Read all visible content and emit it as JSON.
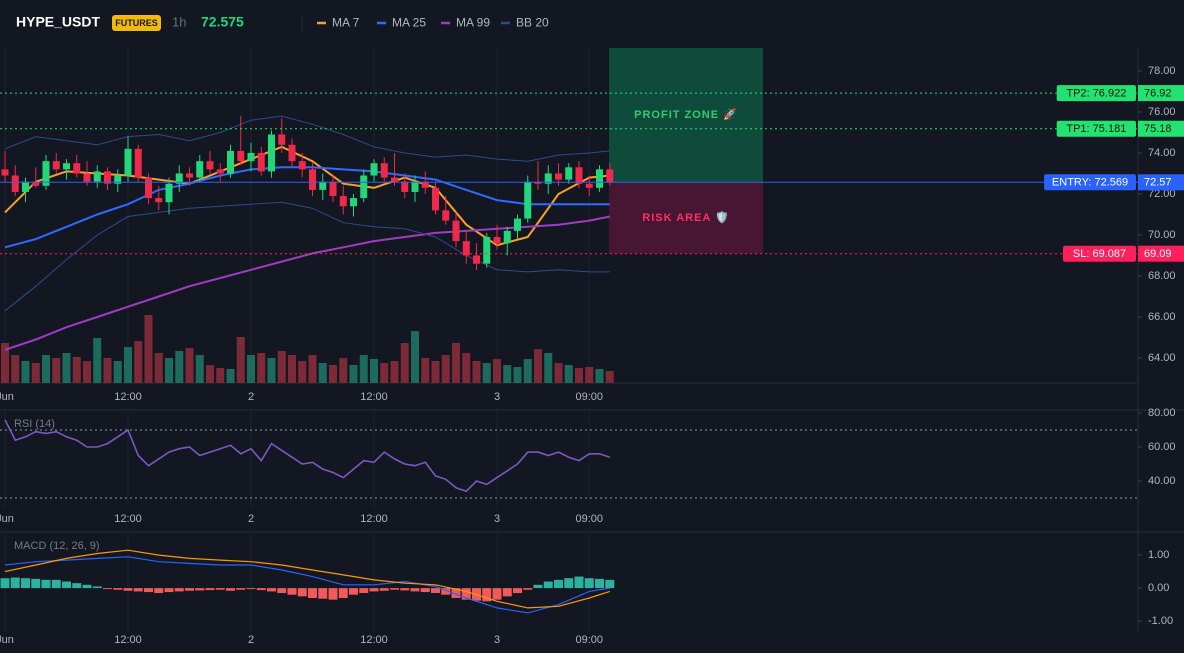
{
  "header": {
    "symbol": "HYPE_USDT",
    "badge": "FUTURES",
    "interval": "1h",
    "price": 72.575
  },
  "chart_data": [
    {
      "type": "candlestick",
      "ylim": [
        62.78,
        79.12
      ],
      "yticks": [
        {
          "value": 64,
          "label": "64.00"
        },
        {
          "value": 66,
          "label": "66.00"
        },
        {
          "value": 68,
          "label": "68.00"
        },
        {
          "value": 70,
          "label": "70.00"
        },
        {
          "value": 72,
          "label": "72.00"
        },
        {
          "value": 74,
          "label": "74.00"
        },
        {
          "value": 76,
          "label": "76.00"
        },
        {
          "value": 78,
          "label": "78.00"
        }
      ],
      "xticks": [
        {
          "value": 0,
          "label": "Jun"
        },
        {
          "value": 12,
          "label": "12:00"
        },
        {
          "value": 24,
          "label": "2"
        },
        {
          "value": 36,
          "label": "12:00"
        },
        {
          "value": 48,
          "label": "3"
        },
        {
          "value": 57,
          "label": "09:00"
        }
      ],
      "up_color": "#22d67a",
      "down_color": "#f0284a",
      "volume_up_color": "#1d6b5d",
      "volume_down_color": "#7d2a38",
      "open": [
        73.2,
        72.9,
        72.1,
        72.6,
        72.4,
        73.6,
        73.2,
        73.5,
        73.0,
        72.6,
        73.1,
        72.5,
        72.9,
        74.2,
        72.8,
        71.8,
        71.6,
        72.5,
        73.0,
        72.8,
        73.6,
        73.2,
        73.0,
        74.1,
        73.6,
        74.0,
        73.1,
        74.9,
        74.4,
        73.6,
        73.2,
        72.2,
        72.6,
        71.9,
        71.4,
        71.8,
        72.9,
        73.5,
        72.8,
        72.6,
        72.1,
        72.6,
        72.3,
        71.2,
        70.7,
        69.7,
        69.0,
        68.6,
        69.9,
        69.6,
        70.2,
        70.8,
        72.6,
        72.5,
        73.0,
        72.7,
        73.3,
        72.5,
        72.3,
        73.2
      ],
      "high": [
        74.1,
        73.4,
        72.8,
        73.3,
        73.9,
        74.0,
        73.7,
        73.9,
        73.6,
        73.4,
        73.3,
        73.2,
        74.8,
        74.4,
        73.0,
        72.4,
        72.8,
        73.4,
        73.3,
        73.9,
        74.1,
        73.5,
        74.4,
        75.8,
        74.5,
        74.3,
        75.1,
        75.7,
        74.7,
        74.0,
        73.5,
        73.0,
        72.9,
        72.4,
        72.0,
        73.2,
        73.7,
        73.8,
        74.0,
        73.0,
        72.9,
        73.1,
        72.6,
        71.9,
        71.1,
        70.2,
        69.6,
        70.1,
        70.5,
        70.4,
        71.0,
        72.9,
        73.6,
        73.4,
        73.5,
        73.5,
        73.6,
        72.9,
        73.4,
        73.5
      ],
      "low": [
        72.6,
        71.9,
        71.6,
        72.3,
        72.2,
        73.0,
        72.7,
        72.8,
        72.4,
        72.3,
        72.2,
        72.1,
        72.6,
        72.6,
        71.5,
        71.2,
        71.0,
        72.1,
        72.4,
        72.6,
        73.0,
        72.6,
        72.8,
        73.4,
        73.1,
        72.9,
        72.8,
        74.0,
        73.3,
        72.8,
        71.9,
        71.7,
        71.6,
        71.0,
        70.9,
        71.6,
        72.6,
        72.6,
        72.4,
        71.8,
        71.6,
        72.0,
        71.0,
        70.5,
        69.4,
        68.6,
        68.3,
        68.4,
        69.3,
        69.0,
        69.8,
        70.6,
        72.2,
        72.0,
        72.4,
        72.5,
        72.3,
        71.9,
        72.1,
        72.4
      ],
      "close": [
        72.9,
        72.1,
        72.6,
        72.4,
        73.6,
        73.2,
        73.5,
        73.0,
        72.6,
        73.1,
        72.5,
        72.9,
        74.2,
        72.8,
        71.8,
        71.6,
        72.5,
        73.0,
        72.8,
        73.6,
        73.2,
        73.0,
        74.1,
        73.6,
        74.0,
        73.1,
        74.9,
        74.4,
        73.6,
        73.2,
        72.2,
        72.6,
        71.9,
        71.4,
        71.8,
        72.9,
        73.5,
        72.8,
        72.6,
        72.1,
        72.6,
        72.3,
        71.2,
        70.7,
        69.7,
        69.0,
        68.6,
        69.9,
        69.6,
        70.2,
        70.8,
        72.6,
        72.5,
        73.0,
        72.7,
        73.3,
        72.5,
        72.3,
        73.2,
        72.575
      ],
      "volume": [
        40,
        28,
        22,
        20,
        28,
        25,
        30,
        26,
        22,
        45,
        25,
        22,
        36,
        42,
        68,
        30,
        25,
        32,
        35,
        28,
        18,
        15,
        14,
        46,
        28,
        30,
        25,
        32,
        28,
        22,
        28,
        20,
        18,
        25,
        18,
        28,
        24,
        20,
        22,
        40,
        52,
        25,
        22,
        28,
        40,
        30,
        22,
        20,
        24,
        18,
        16,
        24,
        34,
        30,
        20,
        18,
        15,
        16,
        14,
        12
      ],
      "series": [
        {
          "name": "MA 7",
          "color": "#f7a128",
          "x": [
            0,
            3,
            6,
            9,
            12,
            15,
            18,
            21,
            24,
            27,
            30,
            33,
            36,
            39,
            42,
            45,
            48,
            51,
            54,
            57,
            59
          ],
          "values": [
            71.1,
            72.6,
            73.1,
            73.0,
            72.9,
            72.7,
            72.5,
            73.1,
            73.7,
            74.3,
            73.6,
            72.5,
            72.3,
            72.8,
            72.3,
            70.5,
            69.5,
            69.9,
            72.0,
            72.8,
            72.9
          ]
        },
        {
          "name": "MA 25",
          "color": "#2e6bff",
          "x": [
            0,
            3,
            6,
            9,
            12,
            15,
            18,
            21,
            24,
            27,
            30,
            33,
            36,
            39,
            42,
            45,
            48,
            51,
            54,
            57,
            59
          ],
          "values": [
            69.4,
            69.8,
            70.4,
            71.0,
            71.5,
            72.2,
            72.5,
            72.9,
            73.2,
            73.3,
            73.3,
            73.2,
            73.1,
            72.9,
            72.7,
            72.2,
            71.7,
            71.5,
            71.5,
            71.5,
            71.5
          ]
        },
        {
          "name": "MA 99",
          "color": "#a23bc4",
          "x": [
            0,
            3,
            6,
            9,
            12,
            15,
            18,
            21,
            24,
            27,
            30,
            33,
            36,
            39,
            42,
            45,
            48,
            51,
            54,
            57,
            59
          ],
          "values": [
            64.4,
            64.9,
            65.5,
            66.0,
            66.5,
            67.0,
            67.5,
            67.9,
            68.3,
            68.7,
            69.1,
            69.4,
            69.7,
            69.9,
            70.1,
            70.2,
            70.3,
            70.4,
            70.5,
            70.7,
            70.9
          ]
        },
        {
          "name": "BB 20",
          "color": "#2f4a8f",
          "x": [
            0,
            3,
            6,
            9,
            12,
            15,
            18,
            21,
            24,
            27,
            30,
            33,
            36,
            39,
            42,
            45,
            48,
            51,
            54,
            57,
            59
          ],
          "upper": [
            74.2,
            74.8,
            74.6,
            74.4,
            74.8,
            74.9,
            74.6,
            75.0,
            75.6,
            75.8,
            75.4,
            74.9,
            74.3,
            74.0,
            73.8,
            73.9,
            73.7,
            73.6,
            73.9,
            74.0,
            74.1
          ],
          "lower": [
            66.3,
            67.5,
            68.8,
            70.0,
            70.9,
            71.1,
            71.3,
            71.4,
            71.5,
            71.6,
            71.3,
            70.6,
            70.4,
            70.3,
            69.9,
            69.0,
            68.3,
            68.2,
            68.3,
            68.2,
            68.2
          ]
        }
      ],
      "levels": [
        {
          "label": "TP2: 76.922",
          "value": 76.922,
          "price_label": "76.92",
          "color": "#22e36f",
          "style": "dotted"
        },
        {
          "label": "TP1: 75.181",
          "value": 75.181,
          "price_label": "75.18",
          "color": "#22e36f",
          "style": "dotted"
        },
        {
          "label": "ENTRY: 72.569",
          "value": 72.569,
          "price_label": "72.57",
          "color": "#2962ff",
          "style": "solid"
        },
        {
          "label": "SL: 69.087",
          "value": 69.087,
          "price_label": "69.09",
          "color": "#ff1f5a",
          "style": "dotted"
        }
      ],
      "zones": [
        {
          "label": "PROFIT ZONE 🚀",
          "from": 72.569,
          "to": 79.12,
          "color": "#0f5e44",
          "text_color": "#2ecc71"
        },
        {
          "label": "RISK AREA 🛡️",
          "from": 69.087,
          "to": 72.569,
          "color": "#5a1738",
          "text_color": "#ff2e63"
        }
      ]
    },
    {
      "type": "line",
      "title": "RSI (14)",
      "color": "#7e57c2",
      "ylim": [
        24.1,
        81.8
      ],
      "yticks": [
        {
          "value": 40,
          "label": "40.00"
        },
        {
          "value": 60,
          "label": "60.00"
        },
        {
          "value": 80,
          "label": "80.00"
        }
      ],
      "bands": [
        30,
        70
      ],
      "xticks": [
        {
          "value": 0,
          "label": "Jun"
        },
        {
          "value": 12,
          "label": "12:00"
        },
        {
          "value": 24,
          "label": "2"
        },
        {
          "value": 36,
          "label": "12:00"
        },
        {
          "value": 48,
          "label": "3"
        },
        {
          "value": 57,
          "label": "09:00"
        }
      ],
      "values": [
        76,
        64,
        66,
        69,
        68,
        69,
        66,
        64,
        60,
        60,
        62,
        66,
        70,
        55,
        49,
        53,
        57,
        59,
        60,
        55,
        57,
        59,
        61,
        56,
        59,
        52,
        62,
        58,
        54,
        50,
        51,
        47,
        45,
        42,
        47,
        52,
        51,
        57,
        53,
        50,
        49,
        51,
        43,
        41,
        36,
        34,
        40,
        38,
        42,
        46,
        50,
        57,
        57,
        55,
        57,
        54,
        52,
        56,
        56,
        54
      ]
    },
    {
      "type": "bar",
      "title": "MACD (12, 26, 9)",
      "ylim": [
        -1.33,
        1.7
      ],
      "yticks": [
        {
          "value": -1,
          "label": "-1.00"
        },
        {
          "value": 0,
          "label": "0.00"
        },
        {
          "value": 1,
          "label": "1.00"
        }
      ],
      "xticks": [
        {
          "value": 0,
          "label": "Jun"
        },
        {
          "value": 12,
          "label": "12:00"
        },
        {
          "value": 24,
          "label": "2"
        },
        {
          "value": 36,
          "label": "12:00"
        },
        {
          "value": 48,
          "label": "3"
        },
        {
          "value": 57,
          "label": "09:00"
        }
      ],
      "up_color": "#2bb3a0",
      "down_color": "#f25a5a",
      "values": [
        0.3,
        0.32,
        0.3,
        0.28,
        0.25,
        0.25,
        0.2,
        0.15,
        0.1,
        0.05,
        -0.03,
        -0.05,
        -0.08,
        -0.1,
        -0.12,
        -0.15,
        -0.12,
        -0.1,
        -0.08,
        -0.07,
        -0.06,
        -0.05,
        -0.08,
        -0.05,
        -0.03,
        -0.06,
        -0.1,
        -0.15,
        -0.2,
        -0.25,
        -0.3,
        -0.32,
        -0.35,
        -0.3,
        -0.2,
        -0.15,
        -0.1,
        -0.08,
        -0.05,
        -0.07,
        -0.1,
        -0.12,
        -0.15,
        -0.2,
        -0.3,
        -0.35,
        -0.38,
        -0.4,
        -0.35,
        -0.25,
        -0.15,
        -0.05,
        0.1,
        0.2,
        0.25,
        0.3,
        0.35,
        0.3,
        0.28,
        0.25
      ],
      "series": [
        {
          "color": "#2962ff",
          "x": [
            0,
            3,
            6,
            9,
            12,
            15,
            18,
            21,
            24,
            27,
            30,
            33,
            36,
            39,
            42,
            45,
            48,
            51,
            54,
            57,
            59
          ],
          "values": [
            0.7,
            0.8,
            0.85,
            0.9,
            0.95,
            0.8,
            0.75,
            0.7,
            0.7,
            0.55,
            0.35,
            0.1,
            0.1,
            0.2,
            0.05,
            -0.3,
            -0.6,
            -0.75,
            -0.5,
            -0.1,
            0.0
          ]
        },
        {
          "color": "#ff9800",
          "x": [
            0,
            3,
            6,
            9,
            12,
            15,
            18,
            21,
            24,
            27,
            30,
            33,
            36,
            39,
            42,
            45,
            48,
            51,
            54,
            57,
            59
          ],
          "values": [
            0.5,
            0.7,
            0.9,
            1.05,
            1.15,
            1.0,
            0.9,
            0.85,
            0.8,
            0.7,
            0.55,
            0.4,
            0.25,
            0.15,
            0.1,
            -0.1,
            -0.4,
            -0.6,
            -0.55,
            -0.3,
            -0.1
          ]
        }
      ]
    }
  ]
}
